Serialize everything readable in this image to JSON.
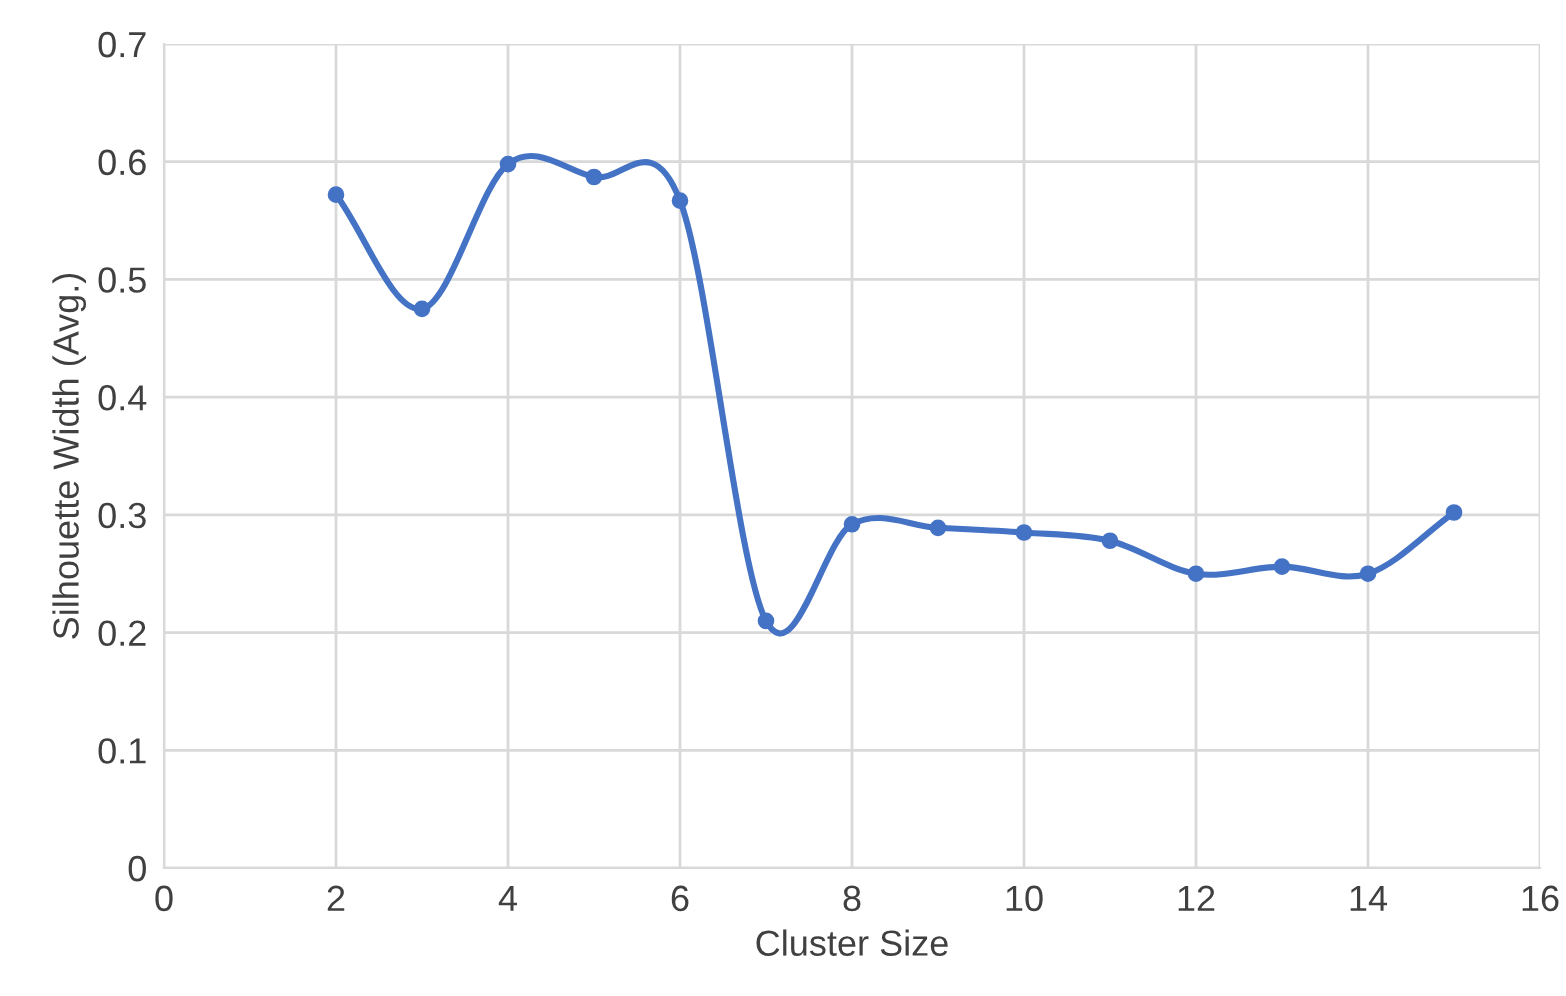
{
  "chart_data": {
    "type": "line",
    "xlabel": "Cluster Size",
    "ylabel": "Silhouette Width (Avg.)",
    "x": [
      2,
      3,
      4,
      5,
      6,
      7,
      8,
      9,
      10,
      11,
      12,
      13,
      14,
      15
    ],
    "series": [
      {
        "color": "#4472c4",
        "values": [
          0.572,
          0.475,
          0.598,
          0.587,
          0.567,
          0.21,
          0.292,
          0.289,
          0.285,
          0.278,
          0.25,
          0.256,
          0.25,
          0.302
        ]
      }
    ],
    "xlim": [
      0,
      16
    ],
    "xticks": [
      0,
      2,
      4,
      6,
      8,
      10,
      12,
      14,
      16
    ],
    "ylim": [
      0,
      0.7
    ],
    "yticks": [
      0,
      0.1,
      0.2,
      0.3,
      0.4,
      0.5,
      0.6,
      0.7
    ],
    "grid": true,
    "marker": "circle",
    "line_style": "solid"
  }
}
